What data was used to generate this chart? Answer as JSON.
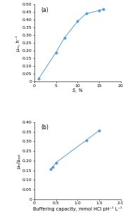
{
  "plot_a": {
    "label": "(a)",
    "x": [
      1,
      5,
      7,
      10,
      12,
      15,
      16
    ],
    "y": [
      0.02,
      0.19,
      0.285,
      0.39,
      0.44,
      0.46,
      0.47
    ],
    "xlabel": "S, %",
    "ylabel": "μₘ, h⁻¹",
    "xlim": [
      0,
      20
    ],
    "ylim": [
      0,
      0.5
    ],
    "xticks": [
      0,
      5,
      10,
      15,
      20
    ],
    "yticks": [
      0.0,
      0.05,
      0.1,
      0.15,
      0.2,
      0.25,
      0.3,
      0.35,
      0.4,
      0.45,
      0.5
    ]
  },
  "plot_b": {
    "label": "(b)",
    "x": [
      0.37,
      0.42,
      0.5,
      1.2,
      1.5
    ],
    "y": [
      0.155,
      0.165,
      0.19,
      0.305,
      0.355
    ],
    "xlabel": "Buffering capacity, mmol HCl pH⁻¹ L⁻¹",
    "ylabel": "μₘ/μₒₚₜ",
    "xlim": [
      0,
      2.0
    ],
    "ylim": [
      0,
      0.4
    ],
    "xticks": [
      0,
      0.5,
      1.0,
      1.5,
      2.0
    ],
    "yticks": [
      0.0,
      0.05,
      0.1,
      0.15,
      0.2,
      0.25,
      0.3,
      0.35,
      0.4
    ]
  },
  "line_color": "#5B9BD5",
  "marker_color": "#5B9BD5",
  "marker": "o",
  "markersize": 2.5,
  "linewidth": 0.7,
  "fontsize_label": 4.8,
  "fontsize_tick": 4.5,
  "fontsize_annot": 5.5
}
